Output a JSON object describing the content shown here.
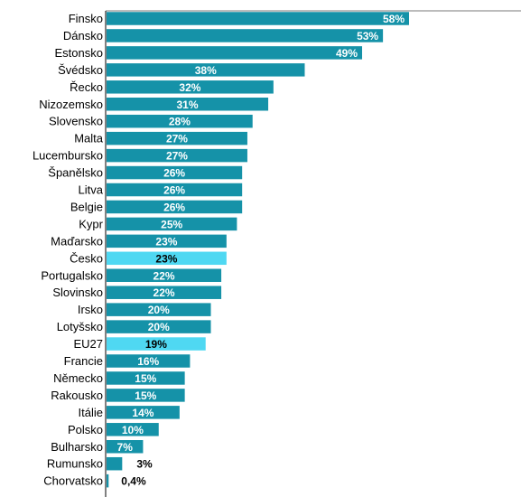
{
  "chart_data": {
    "type": "bar",
    "orientation": "horizontal",
    "categories": [
      "Finsko",
      "Dánsko",
      "Estonsko",
      "Švédsko",
      "Řecko",
      "Nizozemsko",
      "Slovensko",
      "Malta",
      "Lucembursko",
      "Španělsko",
      "Litva",
      "Belgie",
      "Kypr",
      "Maďarsko",
      "Česko",
      "Portugalsko",
      "Slovinsko",
      "Irsko",
      "Lotyšsko",
      "EU27",
      "Francie",
      "Německo",
      "Rakousko",
      "Itálie",
      "Polsko",
      "Bulharsko",
      "Rumunsko",
      "Chorvatsko"
    ],
    "values": [
      58,
      53,
      49,
      38,
      32,
      31,
      28,
      27,
      27,
      26,
      26,
      26,
      25,
      23,
      23,
      22,
      22,
      20,
      20,
      19,
      16,
      15,
      15,
      14,
      10,
      7,
      3,
      0.4
    ],
    "value_labels": [
      "58%",
      "53%",
      "49%",
      "38%",
      "32%",
      "31%",
      "28%",
      "27%",
      "27%",
      "26%",
      "26%",
      "26%",
      "25%",
      "23%",
      "23%",
      "22%",
      "22%",
      "20%",
      "20%",
      "19%",
      "16%",
      "15%",
      "15%",
      "14%",
      "10%",
      "7%",
      "3%",
      "0,4%"
    ],
    "highlighted": [
      "Česko",
      "EU27"
    ],
    "xlim": [
      0,
      100
    ],
    "grid": false,
    "colors": {
      "bar": "#1592a8",
      "highlight": "#4fd8f2",
      "label_inside": "#ffffff",
      "label_highlight": "#000000",
      "label_outside": "#000000",
      "axis": "#000000",
      "top_rule": "#a6a6a6"
    }
  }
}
